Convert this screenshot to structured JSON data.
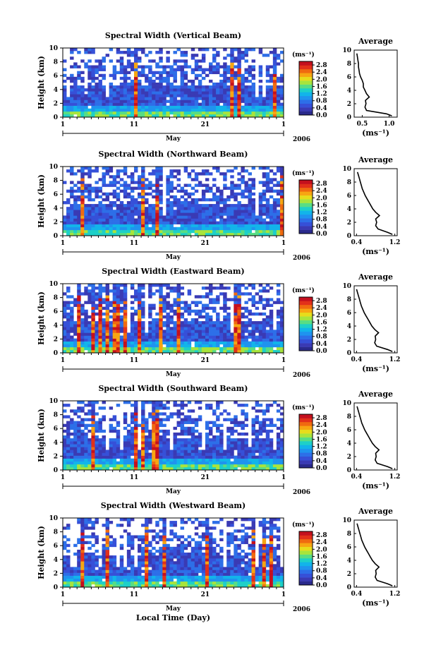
{
  "chart_data": [
    {
      "type": "heatmap",
      "title": "Spectral Width (Vertical Beam)",
      "ylabel": "Height (km)",
      "ylim": [
        0,
        10
      ],
      "yticks": [
        "0",
        "2",
        "4",
        "6",
        "8",
        "10"
      ],
      "xticks": [
        "1",
        "11",
        "21",
        "1"
      ],
      "month": "May",
      "year": "2006",
      "colorbar": {
        "unit": "(ms⁻¹)",
        "ticks": [
          "0.0",
          "0.4",
          "0.8",
          "1.2",
          "1.6",
          "2.0",
          "2.4",
          "2.8"
        ],
        "range": [
          0,
          3.0
        ]
      },
      "profile": {
        "title": "Average",
        "xlabel": "(ms⁻¹)",
        "xticks": [
          "0.5",
          "1.0"
        ],
        "xlim": [
          0.35,
          1.15
        ],
        "height": [
          0.2,
          0.5,
          1,
          1.5,
          2,
          2.5,
          3,
          3.5,
          4,
          4.5,
          5,
          5.5,
          6,
          6.5,
          7,
          7.5,
          8,
          8.5,
          9,
          9.5
        ],
        "width": [
          1.05,
          0.95,
          0.58,
          0.55,
          0.57,
          0.56,
          0.63,
          0.58,
          0.55,
          0.52,
          0.52,
          0.5,
          0.47,
          0.45,
          0.44,
          0.43,
          0.43,
          0.42,
          0.41,
          0.4
        ]
      }
    },
    {
      "type": "heatmap",
      "title": "Spectral Width (Northward Beam)",
      "ylabel": "Height (km)",
      "ylim": [
        0,
        10
      ],
      "yticks": [
        "0",
        "2",
        "4",
        "6",
        "8",
        "10"
      ],
      "xticks": [
        "1",
        "11",
        "21",
        "1"
      ],
      "month": "May",
      "year": "2006",
      "colorbar": {
        "unit": "(ms⁻¹)",
        "ticks": [
          "0.0",
          "0.4",
          "0.8",
          "1.2",
          "1.6",
          "2.0",
          "2.4",
          "2.8"
        ],
        "range": [
          0,
          3.0
        ]
      },
      "profile": {
        "title": "Average",
        "xlabel": "(ms⁻¹)",
        "xticks": [
          "0.4",
          "1.2"
        ],
        "xlim": [
          0.35,
          1.25
        ],
        "height": [
          0.2,
          0.5,
          1,
          1.5,
          2,
          2.5,
          3,
          3.5,
          4,
          4.5,
          5,
          5.5,
          6,
          6.5,
          7,
          7.5,
          8,
          8.5,
          9,
          9.5
        ],
        "width": [
          1.15,
          1.05,
          0.85,
          0.8,
          0.82,
          0.8,
          0.88,
          0.8,
          0.74,
          0.7,
          0.66,
          0.62,
          0.58,
          0.55,
          0.52,
          0.5,
          0.48,
          0.46,
          0.44,
          0.42
        ]
      }
    },
    {
      "type": "heatmap",
      "title": "Spectral Width (Eastward Beam)",
      "ylabel": "Height (km)",
      "ylim": [
        0,
        10
      ],
      "yticks": [
        "0",
        "2",
        "4",
        "6",
        "8",
        "10"
      ],
      "xticks": [
        "1",
        "11",
        "21",
        "1"
      ],
      "month": "May",
      "year": "2006",
      "colorbar": {
        "unit": "(ms⁻¹)",
        "ticks": [
          "0.0",
          "0.4",
          "0.8",
          "1.2",
          "1.6",
          "2.0",
          "2.4",
          "2.8"
        ],
        "range": [
          0,
          3.0
        ]
      },
      "profile": {
        "title": "Average",
        "xlabel": "(ms⁻¹)",
        "xticks": [
          "0.4",
          "1.2"
        ],
        "xlim": [
          0.35,
          1.25
        ],
        "height": [
          0.2,
          0.5,
          1,
          1.5,
          2,
          2.5,
          3,
          3.5,
          4,
          4.5,
          5,
          5.5,
          6,
          6.5,
          7,
          7.5,
          8,
          8.5,
          9,
          9.5
        ],
        "width": [
          1.15,
          1.05,
          0.82,
          0.78,
          0.8,
          0.79,
          0.86,
          0.78,
          0.72,
          0.68,
          0.64,
          0.6,
          0.56,
          0.53,
          0.5,
          0.48,
          0.46,
          0.44,
          0.42,
          0.4
        ]
      }
    },
    {
      "type": "heatmap",
      "title": "Spectral Width (Southward Beam)",
      "ylabel": "Height (km)",
      "ylim": [
        0,
        10
      ],
      "yticks": [
        "0",
        "2",
        "4",
        "6",
        "8",
        "10"
      ],
      "xticks": [
        "1",
        "11",
        "21",
        "1"
      ],
      "month": "May",
      "year": "2006",
      "colorbar": {
        "unit": "(ms⁻¹)",
        "ticks": [
          "0.0",
          "0.4",
          "0.8",
          "1.2",
          "1.6",
          "2.0",
          "2.4",
          "2.8"
        ],
        "range": [
          0,
          3.0
        ]
      },
      "profile": {
        "title": "Average",
        "xlabel": "(ms⁻¹)",
        "xticks": [
          "0.4",
          "1.2"
        ],
        "xlim": [
          0.35,
          1.25
        ],
        "height": [
          0.2,
          0.5,
          1,
          1.5,
          2,
          2.5,
          3,
          3.5,
          4,
          4.5,
          5,
          5.5,
          6,
          6.5,
          7,
          7.5,
          8,
          8.5,
          9,
          9.5
        ],
        "width": [
          1.15,
          1.05,
          0.83,
          0.79,
          0.81,
          0.8,
          0.87,
          0.79,
          0.73,
          0.69,
          0.65,
          0.61,
          0.57,
          0.54,
          0.51,
          0.49,
          0.47,
          0.45,
          0.43,
          0.41
        ]
      }
    },
    {
      "type": "heatmap",
      "title": "Spectral Width (Westward Beam)",
      "ylabel": "Height (km)",
      "ylim": [
        0,
        10
      ],
      "yticks": [
        "0",
        "2",
        "4",
        "6",
        "8",
        "10"
      ],
      "xticks": [
        "1",
        "11",
        "21",
        "1"
      ],
      "month": "May",
      "year": "2006",
      "xlabel": "Local Time (Day)",
      "colorbar": {
        "unit": "(ms⁻¹)",
        "ticks": [
          "0.0",
          "0.4",
          "0.8",
          "1.2",
          "1.6",
          "2.0",
          "2.4",
          "2.8"
        ],
        "range": [
          0,
          3.0
        ]
      },
      "profile": {
        "title": "Average",
        "xlabel": "(ms⁻¹)",
        "xticks": [
          "0.4",
          "1.2"
        ],
        "xlim": [
          0.35,
          1.25
        ],
        "height": [
          0.2,
          0.5,
          1,
          1.5,
          2,
          2.5,
          3,
          3.5,
          4,
          4.5,
          5,
          5.5,
          6,
          6.5,
          7,
          7.5,
          8,
          8.5,
          9,
          9.5
        ],
        "width": [
          1.15,
          1.05,
          0.83,
          0.79,
          0.81,
          0.8,
          0.87,
          0.79,
          0.73,
          0.69,
          0.65,
          0.61,
          0.57,
          0.54,
          0.51,
          0.49,
          0.47,
          0.45,
          0.43,
          0.41
        ]
      }
    }
  ],
  "colormap": [
    "#2a2a8c",
    "#3a3ab4",
    "#3650d8",
    "#2d6fe8",
    "#1f93ef",
    "#12b4ea",
    "#1ed0c8",
    "#58dd84",
    "#a8e43c",
    "#e7dc1c",
    "#f7a612",
    "#f06a10",
    "#e2301a",
    "#c4101e"
  ]
}
